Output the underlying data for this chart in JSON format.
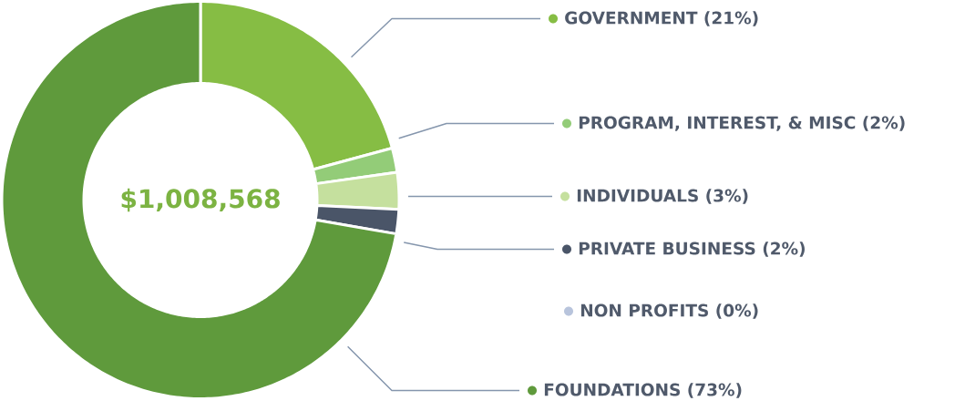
{
  "chart_data": {
    "type": "donut",
    "categories": [
      "GOVERNMENT",
      "PROGRAM, INTEREST, & MISC",
      "INDIVIDUALS",
      "PRIVATE BUSINESS",
      "NON PROFITS",
      "FOUNDATIONS"
    ],
    "values": [
      21,
      2,
      3,
      2,
      0,
      73
    ],
    "value_labels": [
      "(21%)",
      "(2%)",
      "(3%)",
      "(2%)",
      "(0%)",
      "(73%)"
    ],
    "legend": "right",
    "colors": [
      "#86bd44",
      "#93cc78",
      "#c5e09e",
      "#4a5568",
      "#b8c4dc",
      "#5f9a3c"
    ],
    "annotations": [
      "$1,008,568"
    ]
  }
}
